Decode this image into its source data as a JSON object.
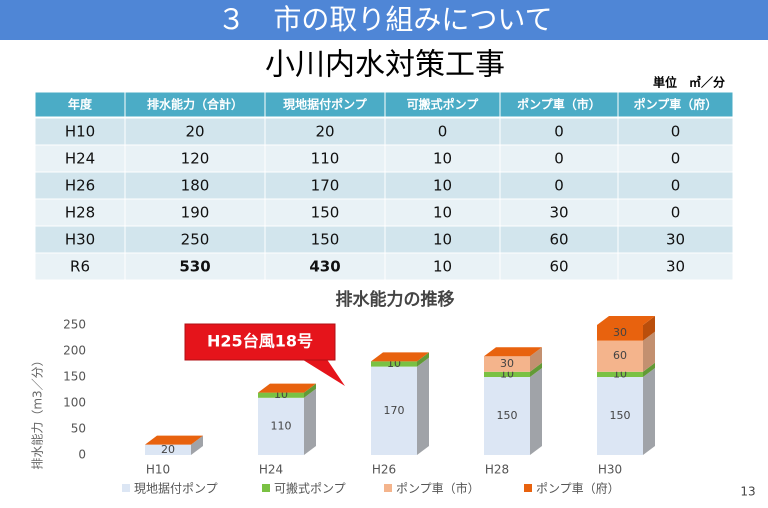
{
  "header": {
    "title": "３　市の取り組みについて",
    "subtitle": "小川内水対策工事",
    "unit": "単位　㎥／分"
  },
  "table": {
    "columns": [
      "年度",
      "排水能力（合計）",
      "現地据付ポンプ",
      "可搬式ポンプ",
      "ポンプ車（市）",
      "ポンプ車（府）"
    ],
    "rows": [
      [
        "H10",
        20,
        20,
        0,
        0,
        0
      ],
      [
        "H24",
        120,
        110,
        10,
        0,
        0
      ],
      [
        "H26",
        180,
        170,
        10,
        0,
        0
      ],
      [
        "H28",
        190,
        150,
        10,
        30,
        0
      ],
      [
        "H30",
        250,
        150,
        10,
        60,
        30
      ],
      [
        "R6",
        530,
        430,
        10,
        60,
        30
      ]
    ]
  },
  "chart_data": {
    "type": "bar",
    "stacked": true,
    "title": "排水能力の推移",
    "y_label": "排水能力（m3／分）",
    "categories": [
      "H10",
      "H24",
      "H26",
      "H28",
      "H30"
    ],
    "series": [
      {
        "name": "現地据付ポンプ",
        "color": "#dce6f4",
        "values": [
          20,
          110,
          170,
          150,
          150
        ]
      },
      {
        "name": "可搬式ポンプ",
        "color": "#7ac143",
        "values": [
          0,
          10,
          10,
          10,
          10
        ]
      },
      {
        "name": "ポンプ車（市）",
        "color": "#f4b48c",
        "values": [
          0,
          0,
          0,
          30,
          60
        ]
      },
      {
        "name": "ポンプ車（府）",
        "color": "#e8620e",
        "values": [
          0,
          0,
          0,
          0,
          30
        ]
      }
    ],
    "ylim": [
      0,
      250
    ],
    "yticks": [
      0,
      50,
      100,
      150,
      200,
      250
    ],
    "grid": false,
    "legend": "bottom",
    "annotation": "H25台風18号"
  },
  "page_number": "13"
}
